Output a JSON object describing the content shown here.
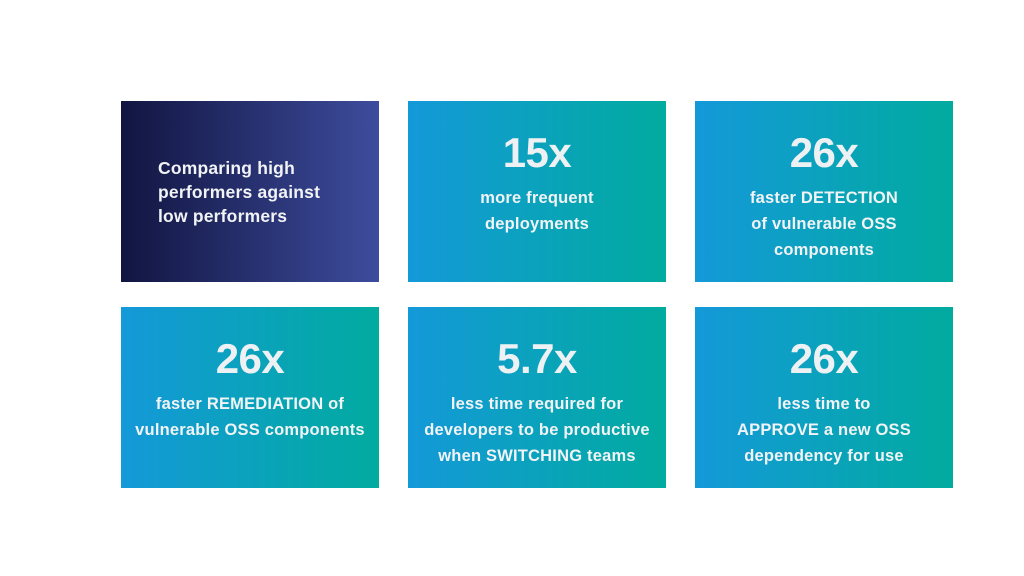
{
  "slide": {
    "background": "#ffffff",
    "text_color": "#f1f3f5"
  },
  "colors": {
    "intro_gradient_start": "#111540",
    "intro_gradient_end": "#3d4c9d",
    "stat_gradient_start": "#1499d9",
    "stat_gradient_end": "#01ab9f",
    "value_text": "#eef1f3"
  },
  "intro_card": {
    "text": "Comparing high performers against low performers",
    "lines": [
      "Comparing high",
      "performers against",
      "low performers"
    ]
  },
  "stat_cards": [
    {
      "value": "15x",
      "label": "more frequent deployments",
      "lines": [
        "more frequent",
        "deployments"
      ]
    },
    {
      "value": "26x",
      "label": "faster DETECTION of vulnerable OSS components",
      "lines": [
        "faster DETECTION",
        "of vulnerable OSS",
        "components"
      ]
    },
    {
      "value": "26x",
      "label": "faster REMEDIATION of vulnerable OSS components",
      "lines": [
        "faster REMEDIATION of",
        "vulnerable OSS components"
      ]
    },
    {
      "value": "5.7x",
      "label": "less time required for developers to be productive when SWITCHING teams",
      "lines": [
        "less time required for",
        "developers to be productive",
        "when SWITCHING teams"
      ]
    },
    {
      "value": "26x",
      "label": "less time to APPROVE a new OSS dependency for use",
      "lines": [
        "less time to",
        "APPROVE a new OSS",
        "dependency for use"
      ]
    }
  ]
}
